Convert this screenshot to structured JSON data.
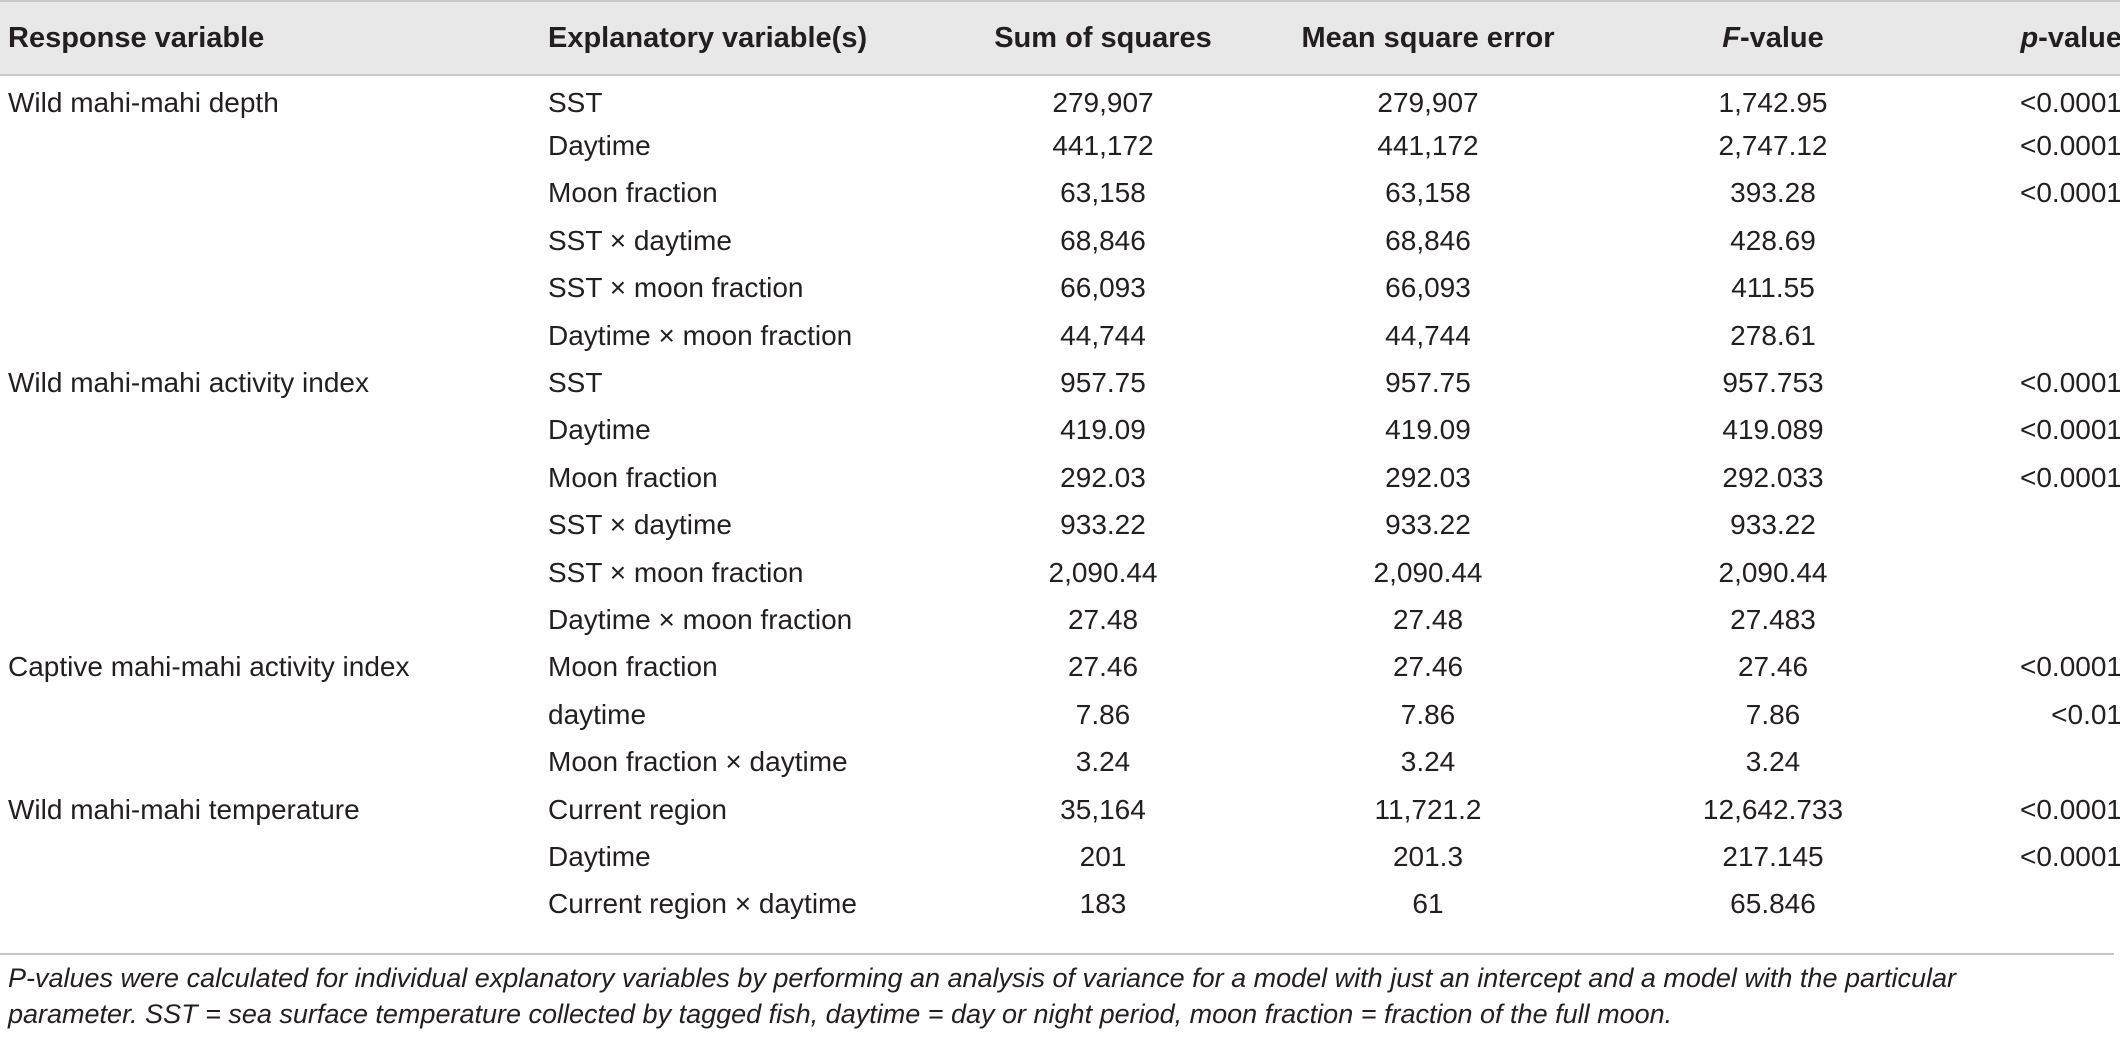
{
  "table": {
    "headers": {
      "response": "Response variable",
      "explanatory": "Explanatory variable(s)",
      "sum_squares": "Sum of squares",
      "mse": "Mean square error",
      "f_prefix": "F",
      "f_suffix": "-value",
      "p_prefix": "p",
      "p_suffix": "-value"
    },
    "rows": [
      {
        "response": "Wild mahi-mahi depth",
        "explanatory": "SST",
        "ss": "279,907",
        "mse": "279,907",
        "f": "1,742.95",
        "p": "<0.0001"
      },
      {
        "response": "",
        "explanatory": "Daytime",
        "ss": "441,172",
        "mse": "441,172",
        "f": "2,747.12",
        "p": "<0.0001"
      },
      {
        "response": "",
        "explanatory": "Moon fraction",
        "ss": "63,158",
        "mse": "63,158",
        "f": "393.28",
        "p": "<0.0001"
      },
      {
        "response": "",
        "explanatory": "SST × daytime",
        "ss": "68,846",
        "mse": "68,846",
        "f": "428.69",
        "p": ""
      },
      {
        "response": "",
        "explanatory": "SST × moon fraction",
        "ss": "66,093",
        "mse": "66,093",
        "f": "411.55",
        "p": ""
      },
      {
        "response": "",
        "explanatory": "Daytime × moon fraction",
        "ss": "44,744",
        "mse": "44,744",
        "f": "278.61",
        "p": ""
      },
      {
        "response": "Wild mahi-mahi activity index",
        "explanatory": "SST",
        "ss": "957.75",
        "mse": "957.75",
        "f": "957.753",
        "p": "<0.0001"
      },
      {
        "response": "",
        "explanatory": "Daytime",
        "ss": "419.09",
        "mse": "419.09",
        "f": "419.089",
        "p": "<0.0001"
      },
      {
        "response": "",
        "explanatory": "Moon fraction",
        "ss": "292.03",
        "mse": "292.03",
        "f": "292.033",
        "p": "<0.0001"
      },
      {
        "response": "",
        "explanatory": "SST × daytime",
        "ss": "933.22",
        "mse": "933.22",
        "f": "933.22",
        "p": ""
      },
      {
        "response": "",
        "explanatory": "SST × moon fraction",
        "ss": "2,090.44",
        "mse": "2,090.44",
        "f": "2,090.44",
        "p": ""
      },
      {
        "response": "",
        "explanatory": "Daytime × moon fraction",
        "ss": "27.48",
        "mse": "27.48",
        "f": "27.483",
        "p": ""
      },
      {
        "response": "Captive mahi-mahi activity index",
        "explanatory": "Moon fraction",
        "ss": "27.46",
        "mse": "27.46",
        "f": "27.46",
        "p": "<0.0001"
      },
      {
        "response": "",
        "explanatory": "daytime",
        "ss": "7.86",
        "mse": "7.86",
        "f": "7.86",
        "p": "<0.01"
      },
      {
        "response": "",
        "explanatory": "Moon fraction × daytime",
        "ss": "3.24",
        "mse": "3.24",
        "f": "3.24",
        "p": ""
      },
      {
        "response": "Wild mahi-mahi temperature",
        "explanatory": "Current region",
        "ss": "35,164",
        "mse": "11,721.2",
        "f": "12,642.733",
        "p": "<0.0001"
      },
      {
        "response": "",
        "explanatory": "Daytime",
        "ss": "201",
        "mse": "201.3",
        "f": "217.145",
        "p": "<0.0001"
      },
      {
        "response": "",
        "explanatory": "Current region × daytime",
        "ss": "183",
        "mse": "61",
        "f": "65.846",
        "p": ""
      }
    ]
  },
  "footnote": {
    "line1": "P-values were calculated for individual explanatory variables by performing an analysis of variance for a model with just an intercept and a model with the particular",
    "line2": "parameter. SST = sea surface temperature collected by tagged fish, daytime = day or night period, moon fraction = fraction of the full moon."
  }
}
